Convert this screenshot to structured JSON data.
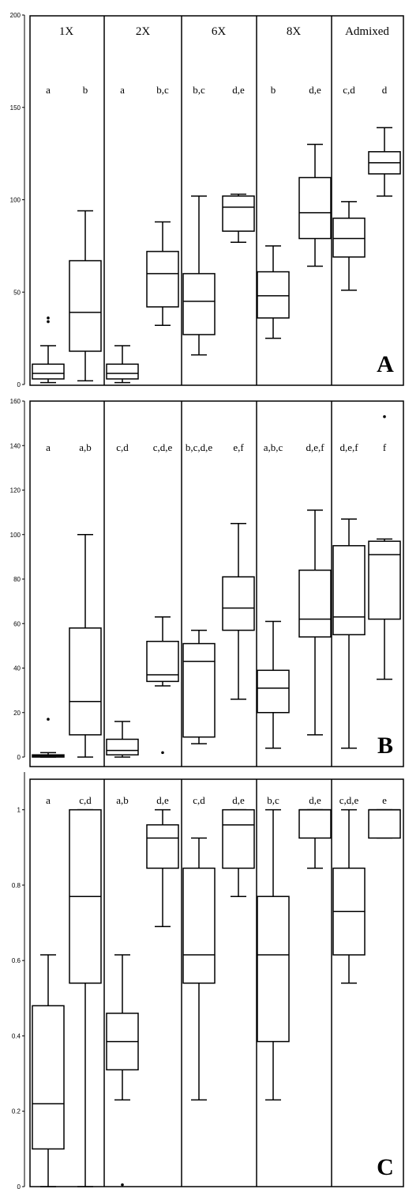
{
  "chart_data": [
    {
      "type": "box",
      "panel_label": "A",
      "ylim": [
        0,
        200
      ],
      "yticks": [
        0,
        50,
        100,
        150,
        200
      ],
      "group_labels": [
        "1X",
        "2X",
        "6X",
        "8X",
        "Admixed"
      ],
      "boxes": [
        {
          "group": "1X",
          "letters": "a",
          "min": 1,
          "q1": 3,
          "median": 6,
          "q3": 11,
          "max": 21,
          "outliers": [
            34,
            36
          ]
        },
        {
          "group": "1X",
          "letters": "b",
          "min": 2,
          "q1": 18,
          "median": 39,
          "q3": 67,
          "max": 94,
          "outliers": []
        },
        {
          "group": "2X",
          "letters": "a",
          "min": 1,
          "q1": 3,
          "median": 6,
          "q3": 11,
          "max": 21,
          "outliers": []
        },
        {
          "group": "2X",
          "letters": "b,c",
          "min": 32,
          "q1": 42,
          "median": 60,
          "q3": 72,
          "max": 88,
          "outliers": []
        },
        {
          "group": "6X",
          "letters": "b,c",
          "min": 16,
          "q1": 27,
          "median": 45,
          "q3": 60,
          "max": 102,
          "outliers": []
        },
        {
          "group": "6X",
          "letters": "d,e",
          "min": 77,
          "q1": 83,
          "median": 96,
          "q3": 102,
          "max": 103,
          "outliers": []
        },
        {
          "group": "8X",
          "letters": "b",
          "min": 25,
          "q1": 36,
          "median": 48,
          "q3": 61,
          "max": 75,
          "outliers": []
        },
        {
          "group": "8X",
          "letters": "d,e",
          "min": 64,
          "q1": 79,
          "median": 93,
          "q3": 112,
          "max": 130,
          "outliers": []
        },
        {
          "group": "Admixed",
          "letters": "c,d",
          "min": 51,
          "q1": 69,
          "median": 79,
          "q3": 90,
          "max": 99,
          "outliers": []
        },
        {
          "group": "Admixed",
          "letters": "d",
          "min": 102,
          "q1": 114,
          "median": 120,
          "q3": 126,
          "max": 139,
          "outliers": []
        }
      ]
    },
    {
      "type": "box",
      "panel_label": "B",
      "ylim": [
        0,
        160
      ],
      "yticks": [
        0,
        20,
        40,
        60,
        80,
        100,
        120,
        140,
        160
      ],
      "group_labels": [
        "",
        "",
        "",
        "",
        ""
      ],
      "boxes": [
        {
          "group": "1X",
          "letters": "a",
          "min": 0,
          "q1": 0,
          "median": 0.5,
          "q3": 1,
          "max": 2,
          "outliers": [
            17
          ]
        },
        {
          "group": "1X",
          "letters": "a,b",
          "min": 0,
          "q1": 10,
          "median": 25,
          "q3": 58,
          "max": 100,
          "outliers": []
        },
        {
          "group": "2X",
          "letters": "c,d",
          "min": 0,
          "q1": 1,
          "median": 3,
          "q3": 8,
          "max": 16,
          "outliers": []
        },
        {
          "group": "2X",
          "letters": "c,d,e",
          "min": 32,
          "q1": 34,
          "median": 37,
          "q3": 52,
          "max": 63,
          "outliers": [
            2
          ]
        },
        {
          "group": "6X",
          "letters": "b,c,d,e",
          "min": 6,
          "q1": 9,
          "median": 43,
          "q3": 51,
          "max": 57,
          "outliers": []
        },
        {
          "group": "6X",
          "letters": "e,f",
          "min": 26,
          "q1": 57,
          "median": 67,
          "q3": 81,
          "max": 105,
          "outliers": []
        },
        {
          "group": "8X",
          "letters": "a,b,c",
          "min": 4,
          "q1": 20,
          "median": 31,
          "q3": 39,
          "max": 61,
          "outliers": []
        },
        {
          "group": "8X",
          "letters": "d,e,f",
          "min": 10,
          "q1": 54,
          "median": 62,
          "q3": 84,
          "max": 111,
          "outliers": []
        },
        {
          "group": "Admixed",
          "letters": "d,e,f",
          "min": 4,
          "q1": 55,
          "median": 63,
          "q3": 95,
          "max": 107,
          "outliers": []
        },
        {
          "group": "Admixed",
          "letters": "f",
          "min": 35,
          "q1": 62,
          "median": 91,
          "q3": 97,
          "max": 98,
          "outliers": [
            153
          ]
        }
      ]
    },
    {
      "type": "box",
      "panel_label": "C",
      "ylim": [
        0,
        1.1
      ],
      "yticks": [
        0,
        0.2,
        0.4,
        0.6,
        0.8,
        1
      ],
      "ytick_labels": [
        "0",
        "0.2",
        "0.4",
        "0.6",
        "0.8",
        "1"
      ],
      "group_labels": [
        "",
        "",
        "",
        "",
        ""
      ],
      "boxes": [
        {
          "group": "1X",
          "letters": "a",
          "min": 0,
          "q1": 0.1,
          "median": 0.22,
          "q3": 0.48,
          "max": 0.615,
          "outliers": []
        },
        {
          "group": "1X",
          "letters": "c,d",
          "min": 0,
          "q1": 0.54,
          "median": 0.77,
          "q3": 1,
          "max": 1,
          "outliers": []
        },
        {
          "group": "2X",
          "letters": "a,b",
          "min": 0.23,
          "q1": 0.31,
          "median": 0.385,
          "q3": 0.46,
          "max": 0.615,
          "outliers": [
            0.005
          ]
        },
        {
          "group": "2X",
          "letters": "d,e",
          "min": 0.69,
          "q1": 0.845,
          "median": 0.925,
          "q3": 0.96,
          "max": 1,
          "outliers": []
        },
        {
          "group": "6X",
          "letters": "c,d",
          "min": 0.23,
          "q1": 0.54,
          "median": 0.615,
          "q3": 0.845,
          "max": 0.925,
          "outliers": []
        },
        {
          "group": "6X",
          "letters": "d,e",
          "min": 0.77,
          "q1": 0.845,
          "median": 0.96,
          "q3": 1,
          "max": 1,
          "outliers": []
        },
        {
          "group": "8X",
          "letters": "b,c",
          "min": 0.23,
          "q1": 0.385,
          "median": 0.615,
          "q3": 0.77,
          "max": 1,
          "outliers": []
        },
        {
          "group": "8X",
          "letters": "d,e",
          "min": 0.845,
          "q1": 0.925,
          "median": 1,
          "q3": 1,
          "max": 1,
          "outliers": []
        },
        {
          "group": "Admixed",
          "letters": "c,d,e",
          "min": 0.54,
          "q1": 0.615,
          "median": 0.73,
          "q3": 0.845,
          "max": 1,
          "outliers": []
        },
        {
          "group": "Admixed",
          "letters": "e",
          "min": 0.925,
          "q1": 0.925,
          "median": 1,
          "q3": 1,
          "max": 1,
          "outliers": []
        }
      ]
    }
  ]
}
